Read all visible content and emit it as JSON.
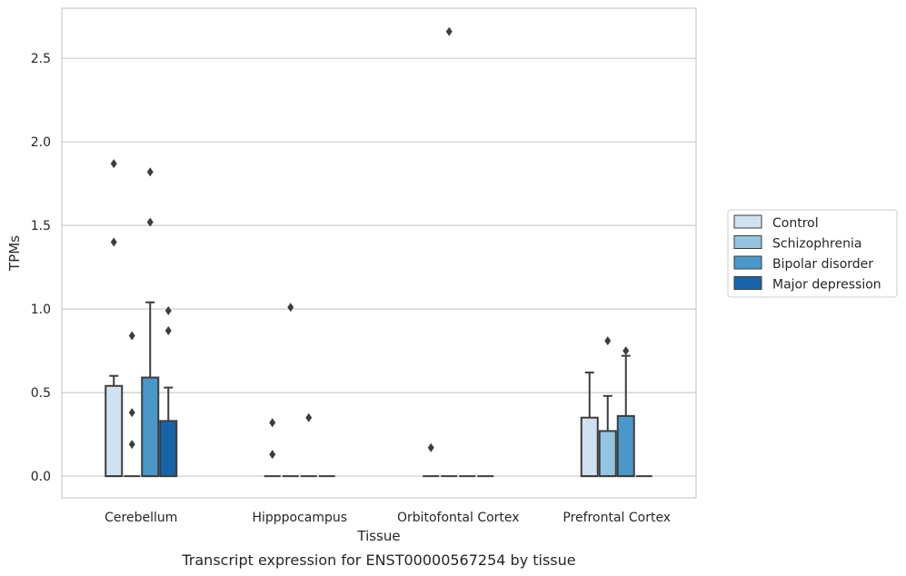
{
  "chart_data": {
    "type": "box",
    "xlabel": "Tissue",
    "ylabel": "TPMs",
    "caption": "Transcript expression for ENST00000567254 by tissue",
    "categories": [
      "Cerebellum",
      "Hipppocampus",
      "Orbitofontal Cortex",
      "Prefrontal Cortex"
    ],
    "y_ticks": [
      "0.0",
      "0.5",
      "1.0",
      "1.5",
      "2.0",
      "2.5"
    ],
    "ylim": [
      -0.13,
      2.8
    ],
    "grid": "horizontal",
    "legend_position": "right",
    "series": [
      {
        "name": "Control",
        "color": "#d0e1f2",
        "boxes": [
          {
            "q1": 0,
            "median": 0,
            "q3": 0.54,
            "whisker_low": 0,
            "whisker_high": 0.6,
            "outliers": [
              1.4,
              1.87
            ]
          },
          {
            "q1": 0,
            "median": 0,
            "q3": 0,
            "whisker_low": 0,
            "whisker_high": 0,
            "outliers": [
              0.13,
              0.32
            ]
          },
          {
            "q1": 0,
            "median": 0,
            "q3": 0,
            "whisker_low": 0,
            "whisker_high": 0,
            "outliers": [
              0.17
            ]
          },
          {
            "q1": 0,
            "median": 0,
            "q3": 0.35,
            "whisker_low": 0,
            "whisker_high": 0.62,
            "outliers": []
          }
        ]
      },
      {
        "name": "Schizophrenia",
        "color": "#94c4df",
        "boxes": [
          {
            "q1": 0,
            "median": 0,
            "q3": 0,
            "whisker_low": 0,
            "whisker_high": 0,
            "outliers": [
              0.19,
              0.38,
              0.84
            ]
          },
          {
            "q1": 0,
            "median": 0,
            "q3": 0,
            "whisker_low": 0,
            "whisker_high": 0,
            "outliers": [
              1.01
            ]
          },
          {
            "q1": 0,
            "median": 0,
            "q3": 0,
            "whisker_low": 0,
            "whisker_high": 0,
            "outliers": [
              2.66
            ]
          },
          {
            "q1": 0,
            "median": 0,
            "q3": 0.27,
            "whisker_low": 0,
            "whisker_high": 0.48,
            "outliers": [
              0.81
            ]
          }
        ]
      },
      {
        "name": "Bipolar disorder",
        "color": "#4a98c9",
        "boxes": [
          {
            "q1": 0,
            "median": 0,
            "q3": 0.59,
            "whisker_low": 0,
            "whisker_high": 1.04,
            "outliers": [
              1.52,
              1.82
            ]
          },
          {
            "q1": 0,
            "median": 0,
            "q3": 0,
            "whisker_low": 0,
            "whisker_high": 0,
            "outliers": [
              0.35
            ]
          },
          {
            "q1": 0,
            "median": 0,
            "q3": 0,
            "whisker_low": 0,
            "whisker_high": 0,
            "outliers": []
          },
          {
            "q1": 0,
            "median": 0,
            "q3": 0.36,
            "whisker_low": 0,
            "whisker_high": 0.72,
            "outliers": [
              0.75
            ]
          }
        ]
      },
      {
        "name": "Major depression",
        "color": "#1764ab",
        "boxes": [
          {
            "q1": 0,
            "median": 0,
            "q3": 0.33,
            "whisker_low": 0,
            "whisker_high": 0.53,
            "outliers": [
              0.87,
              0.99
            ]
          },
          {
            "q1": 0,
            "median": 0,
            "q3": 0,
            "whisker_low": 0,
            "whisker_high": 0,
            "outliers": []
          },
          {
            "q1": 0,
            "median": 0,
            "q3": 0,
            "whisker_low": 0,
            "whisker_high": 0,
            "outliers": []
          },
          {
            "q1": 0,
            "median": 0,
            "q3": 0,
            "whisker_low": 0,
            "whisker_high": 0,
            "outliers": []
          }
        ]
      }
    ]
  }
}
